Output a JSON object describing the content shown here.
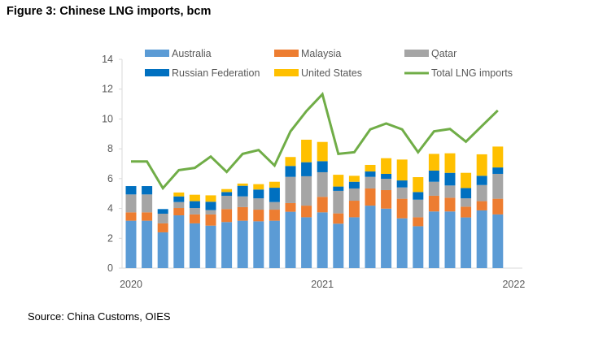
{
  "title": "Figure 3: Chinese LNG imports, bcm",
  "source": "Source: China Customs, OIES",
  "chart_data": {
    "type": "bar",
    "stacked": true,
    "title": "Figure 3: Chinese LNG imports, bcm",
    "xlabel": "",
    "ylabel": "",
    "ylim": [
      0,
      14
    ],
    "yticks": [
      "0",
      "2",
      "4",
      "6",
      "8",
      "10",
      "12",
      "14"
    ],
    "xticks": [
      {
        "label": "2020",
        "at": "2020-01"
      },
      {
        "label": "2021",
        "at": "2021-01"
      },
      {
        "label": "2022",
        "at": "2022-01"
      }
    ],
    "grid": false,
    "legend": "top",
    "x": [
      "2020-01",
      "2020-02",
      "2020-03",
      "2020-04",
      "2020-05",
      "2020-06",
      "2020-07",
      "2020-08",
      "2020-09",
      "2020-10",
      "2020-11",
      "2020-12",
      "2021-01",
      "2021-02",
      "2021-03",
      "2021-04",
      "2021-05",
      "2021-06",
      "2021-07",
      "2021-08",
      "2021-09",
      "2021-10",
      "2021-11",
      "2021-12"
    ],
    "series": [
      {
        "name": "Australia",
        "color": "#5B9BD5",
        "values": [
          3.18,
          3.18,
          2.4,
          3.54,
          3.0,
          2.85,
          3.09,
          3.18,
          3.14,
          3.18,
          3.78,
          3.41,
          3.74,
          2.98,
          3.41,
          4.19,
          3.99,
          3.34,
          2.81,
          3.8,
          3.8,
          3.4,
          3.87,
          3.6
        ]
      },
      {
        "name": "Malaysia",
        "color": "#ED7D31",
        "values": [
          0.56,
          0.56,
          0.6,
          0.49,
          0.6,
          0.75,
          0.87,
          0.91,
          0.78,
          0.74,
          0.58,
          0.78,
          1.04,
          0.69,
          1.11,
          1.15,
          1.24,
          1.31,
          0.6,
          1.05,
          0.92,
          0.72,
          0.62,
          1.05
        ]
      },
      {
        "name": "Qatar",
        "color": "#A5A5A5",
        "values": [
          1.2,
          1.2,
          0.65,
          0.4,
          0.43,
          0.29,
          0.89,
          0.72,
          0.76,
          0.51,
          1.76,
          1.97,
          1.65,
          1.51,
          0.82,
          0.78,
          0.76,
          0.76,
          1.18,
          0.94,
          0.82,
          0.56,
          1.08,
          1.67
        ]
      },
      {
        "name": "Russian Federation",
        "color": "#0070C0",
        "values": [
          0.56,
          0.56,
          0.31,
          0.38,
          0.46,
          0.56,
          0.25,
          0.71,
          0.59,
          0.96,
          0.73,
          0.94,
          0.74,
          0.29,
          0.45,
          0.36,
          0.33,
          0.47,
          0.51,
          0.75,
          0.85,
          0.69,
          0.62,
          0.43
        ]
      },
      {
        "name": "United States",
        "color": "#FFC000",
        "values": [
          0,
          0,
          0,
          0.26,
          0.43,
          0.43,
          0.2,
          0.15,
          0.36,
          0.4,
          0.6,
          1.51,
          1.29,
          0.79,
          0.4,
          0.44,
          1.05,
          1.4,
          1.0,
          1.12,
          1.31,
          1.02,
          1.44,
          1.4
        ]
      }
    ],
    "line": {
      "name": "Total LNG imports",
      "color": "#70AD47",
      "values": [
        7.15,
        7.15,
        5.36,
        6.57,
        6.72,
        7.48,
        6.45,
        7.66,
        7.92,
        6.88,
        9.17,
        10.53,
        11.66,
        7.66,
        7.77,
        9.3,
        9.7,
        9.3,
        7.77,
        9.17,
        9.33,
        8.48,
        9.53,
        10.57
      ]
    }
  }
}
